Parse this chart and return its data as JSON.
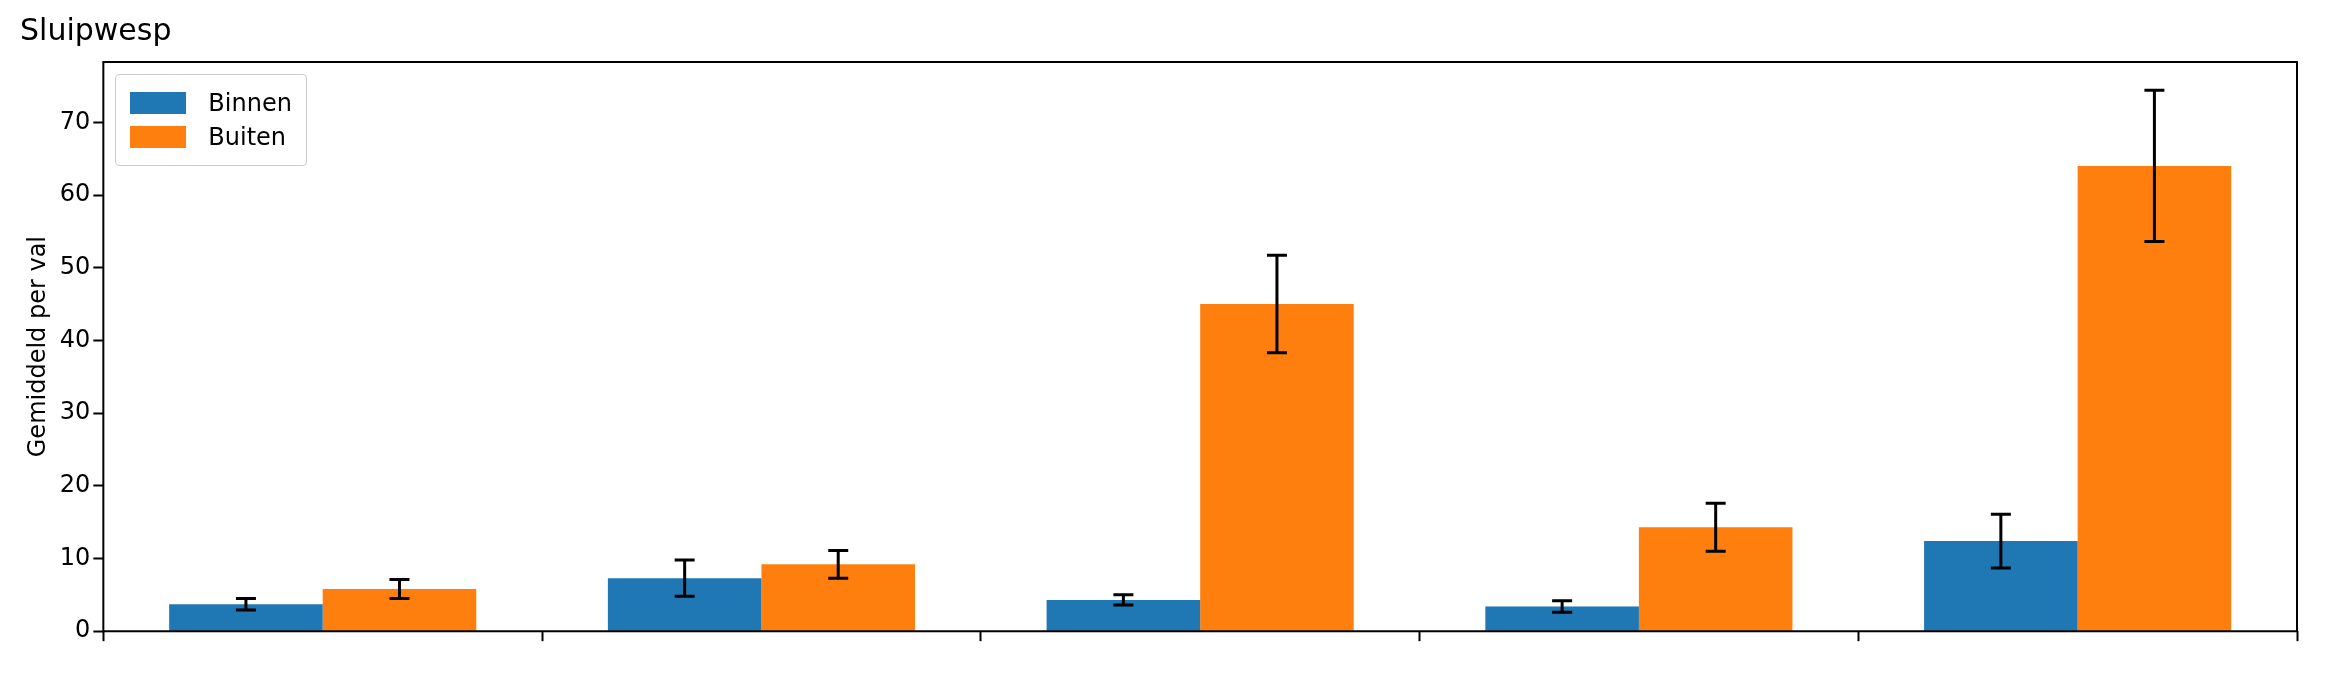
{
  "chart_data": {
    "type": "bar",
    "title": "Sluipwesp",
    "ylabel": "Gemiddeld per val",
    "categories": [
      null,
      null,
      null,
      null,
      null
    ],
    "series": [
      {
        "name": "Binnen",
        "color": "#1f77b4",
        "values": [
          3.7,
          7.3,
          4.3,
          3.4,
          12.4
        ],
        "errors": [
          0.8,
          2.5,
          0.7,
          0.8,
          3.7
        ]
      },
      {
        "name": "Buiten",
        "color": "#ff7f0e",
        "values": [
          5.8,
          9.2,
          45,
          14.3,
          64
        ],
        "errors": [
          1.3,
          1.9,
          6.7,
          3.3,
          10.4
        ]
      }
    ],
    "ylim": [
      0,
      78.3
    ],
    "yticks": [
      0,
      10,
      20,
      30,
      40,
      50,
      60,
      70
    ],
    "grid": false,
    "legend": "top left"
  }
}
